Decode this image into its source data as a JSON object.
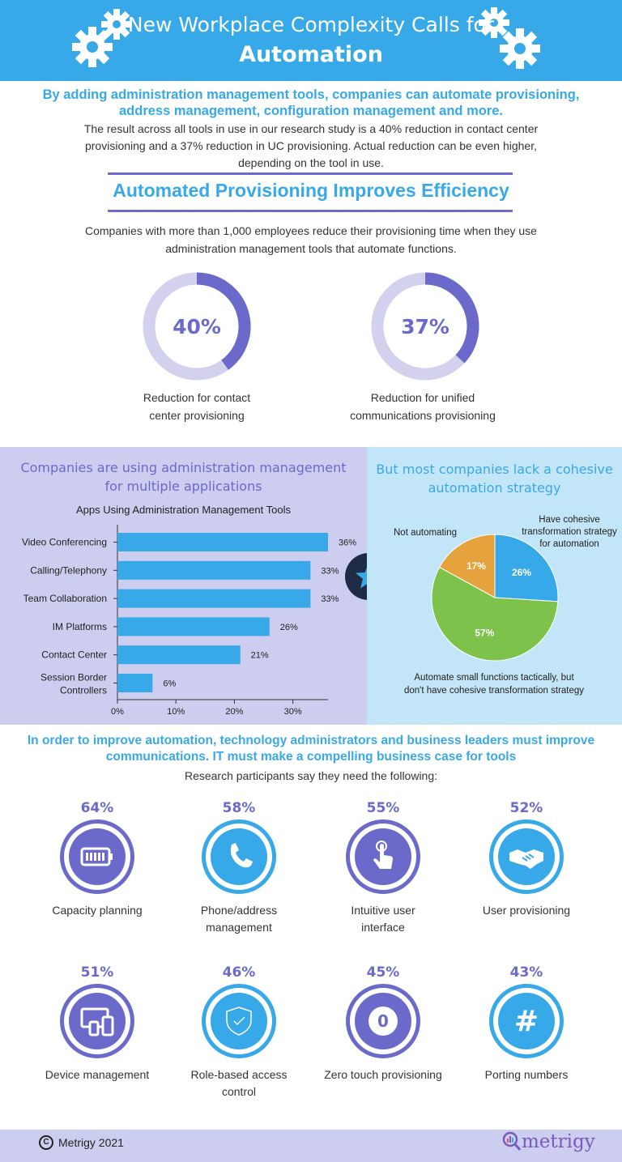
{
  "header": {
    "title_line1": "New Workplace Complexity Calls for",
    "title_line2": "Automation"
  },
  "intro": {
    "bold": "By adding administration management tools, companies can automate provisioning, address management, configuration management and more.",
    "body": "The result across all tools in use in our research study is a 40% reduction in contact center provisioning and a 37% reduction in UC provisioning. Actual reduction can be even higher, depending on the tool in use."
  },
  "provisioning": {
    "title": "Automated Provisioning Improves Efficiency",
    "description": "Companies with more than 1,000 employees reduce their provisioning time when they use administration management tools that automate functions."
  },
  "colors": {
    "blue": "#38a9e8",
    "purple": "#6b6acb",
    "lavender": "#cdcdef",
    "light_blue": "#c3e5f8",
    "green": "#7dc24b",
    "orange": "#e6a23c"
  },
  "chart_data": [
    {
      "type": "pie",
      "variant": "donut",
      "center_label": "40%",
      "values": [
        40,
        60
      ],
      "caption_line1": "Reduction for contact",
      "caption_line2": "center provisioning"
    },
    {
      "type": "pie",
      "variant": "donut",
      "center_label": "37%",
      "values": [
        37,
        63
      ],
      "caption_line1": "Reduction for unified",
      "caption_line2": "communications provisioning"
    },
    {
      "type": "bar",
      "orientation": "horizontal",
      "heading_line1": "Companies are using administration management",
      "heading_line2": "for multiple applications",
      "title": "Apps Using Administration Management Tools",
      "categories": [
        "Video Conferencing",
        "Calling/Telephony",
        "Team Collaboration",
        "IM Platforms",
        "Contact Center",
        "Session Border Controllers"
      ],
      "values": [
        36,
        33,
        33,
        26,
        21,
        6
      ],
      "value_labels": [
        "36%",
        "33%",
        "33%",
        "26%",
        "21%",
        "6%"
      ],
      "ticks": [
        "0%",
        "10%",
        "20%",
        "30%"
      ],
      "xlim": [
        0,
        36
      ],
      "grid": false
    },
    {
      "type": "pie",
      "heading_line1": "But most companies lack a cohesive",
      "heading_line2": "automation strategy",
      "slices": [
        {
          "label": "Have cohesive transformation strategy for automation",
          "value": 26,
          "value_label": "26%",
          "color": "#38a9e8"
        },
        {
          "label": "Automate small functions tactically, but don't have cohesive transformation strategy",
          "value": 57,
          "value_label": "57%",
          "color": "#7dc24b"
        },
        {
          "label": "Not automating",
          "value": 17,
          "value_label": "17%",
          "color": "#e6a23c"
        }
      ]
    }
  ],
  "pie_annotations": {
    "have_line1": "Have cohesive",
    "have_line2": "transformation strategy",
    "have_line3": "for automation",
    "small_line1": "Automate small functions tactically, but",
    "small_line2": "don't have cohesive transformation strategy",
    "not_line1": "Not automating"
  },
  "improve": {
    "title": "In order to improve automation, technology administrators and business leaders must improve communications. IT must make a compelling business case for tools",
    "subtitle": "Research participants say they need the following:"
  },
  "needs": [
    {
      "pct": "64%",
      "line1": "Capacity planning",
      "line2": "",
      "icon": "battery-icon",
      "style": "purple"
    },
    {
      "pct": "58%",
      "line1": "Phone/address",
      "line2": "management",
      "icon": "phone-icon",
      "style": "blue"
    },
    {
      "pct": "55%",
      "line1": "Intuitive user",
      "line2": "interface",
      "icon": "touch-hand-icon",
      "style": "purple"
    },
    {
      "pct": "52%",
      "line1": "User provisioning",
      "line2": "",
      "icon": "handshake-icon",
      "style": "blue"
    },
    {
      "pct": "51%",
      "line1": "Device management",
      "line2": "",
      "icon": "devices-icon",
      "style": "purple"
    },
    {
      "pct": "46%",
      "line1": "Role-based access",
      "line2": "control",
      "icon": "shield-check-icon",
      "style": "blue"
    },
    {
      "pct": "45%",
      "line1": "Zero touch provisioning",
      "line2": "",
      "icon": "zero-icon",
      "style": "purple",
      "glyph": "0"
    },
    {
      "pct": "43%",
      "line1": "Porting numbers",
      "line2": "",
      "icon": "hash-icon",
      "style": "blue",
      "glyph": "#"
    }
  ],
  "footer": {
    "copyright": "Metrigy 2021",
    "copyright_symbol": "C",
    "logo": "metrigy"
  }
}
